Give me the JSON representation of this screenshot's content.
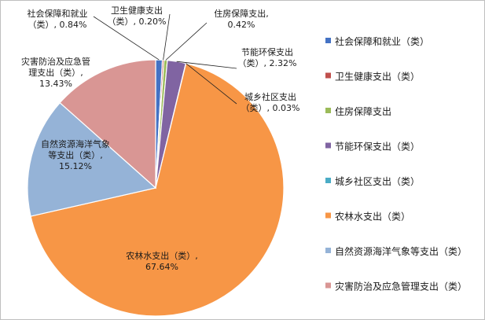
{
  "chart_data": {
    "type": "pie",
    "title": "",
    "legend_position": "right",
    "categories": [
      "社会保障和就业（类）",
      "卫生健康支出（类）",
      "住房保障支出",
      "节能环保支出（类）",
      "城乡社区支出（类）",
      "农林水支出（类）",
      "自然资源海洋气象等支出（类）",
      "灾害防治及应急管理支出（类）"
    ],
    "values": [
      0.84,
      0.2,
      0.42,
      2.32,
      0.03,
      67.64,
      15.12,
      13.43
    ],
    "value_unit": "%",
    "colors": [
      "#4472c4",
      "#c0504d",
      "#9bbb59",
      "#8064a2",
      "#4bacc6",
      "#f79646",
      "#95b3d7",
      "#d99694"
    ],
    "data_labels": [
      [
        "社会保障和就业",
        "（类）, 0.84%"
      ],
      [
        "卫生健康支出",
        "（类）, 0.20%"
      ],
      [
        "住房保障支出,",
        "0.42%"
      ],
      [
        "节能环保支出",
        "（类）, 2.32%"
      ],
      [
        "城乡社区支出",
        "（类）, 0.03%"
      ],
      [
        "农林水支出（类）,",
        "67.64%"
      ],
      [
        "自然资源海洋气象",
        "等支出（类）,",
        "15.12%"
      ],
      [
        "灾害防治及应急管",
        "理支出（类）,",
        "13.43%"
      ]
    ]
  }
}
